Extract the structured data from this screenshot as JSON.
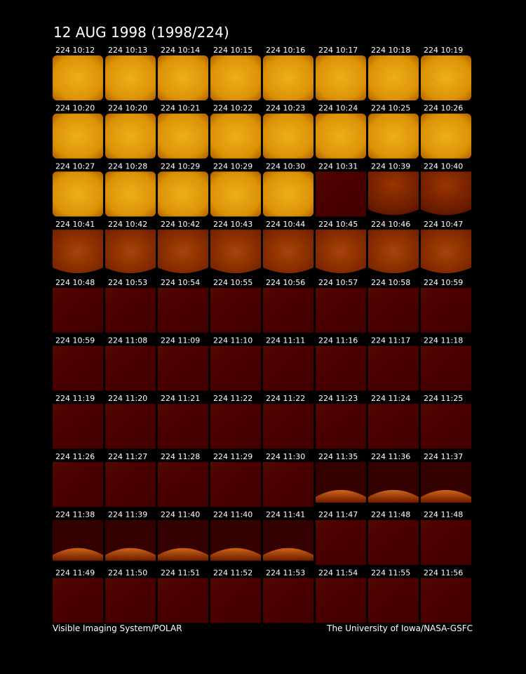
{
  "title": "12 AUG 1998  (1998/224)",
  "rows": [
    [
      "224 10:12",
      "224 10:13",
      "224 10:14",
      "224 10:15",
      "224 10:16",
      "224 10:17",
      "224 10:18",
      "224 10:19"
    ],
    [
      "224 10:20",
      "224 10:20",
      "224 10:21",
      "224 10:22",
      "224 10:23",
      "224 10:24",
      "224 10:25",
      "224 10:26"
    ],
    [
      "224 10:27",
      "224 10:28",
      "224 10:29",
      "224 10:29",
      "224 10:30",
      "224 10:31",
      "224 10:39",
      "224 10:40"
    ],
    [
      "224 10:41",
      "224 10:42",
      "224 10:42",
      "224 10:43",
      "224 10:44",
      "224 10:45",
      "224 10:46",
      "224 10:47"
    ],
    [
      "224 10:48",
      "224 10:53",
      "224 10:54",
      "224 10:55",
      "224 10:56",
      "224 10:57",
      "224 10:58",
      "224 10:59"
    ],
    [
      "224 10:59",
      "224 11:08",
      "224 11:09",
      "224 11:10",
      "224 11:11",
      "224 11:16",
      "224 11:17",
      "224 11:18"
    ],
    [
      "224 11:19",
      "224 11:20",
      "224 11:21",
      "224 11:22",
      "224 11:22",
      "224 11:23",
      "224 11:24",
      "224 11:25"
    ],
    [
      "224 11:26",
      "224 11:27",
      "224 11:28",
      "224 11:29",
      "224 11:30",
      "224 11:35",
      "224 11:36",
      "224 11:37"
    ],
    [
      "224 11:38",
      "224 11:39",
      "224 11:40",
      "224 11:40",
      "224 11:41",
      "224 11:47",
      "224 11:48",
      "224 11:48"
    ],
    [
      "224 11:49",
      "224 11:50",
      "224 11:51",
      "224 11:52",
      "224 11:53",
      "224 11:54",
      "224 11:55",
      "224 11:56"
    ]
  ],
  "footer": {
    "left": "Visible Imaging System/POLAR",
    "right": "The University of Iowa/NASA-GSFC"
  }
}
